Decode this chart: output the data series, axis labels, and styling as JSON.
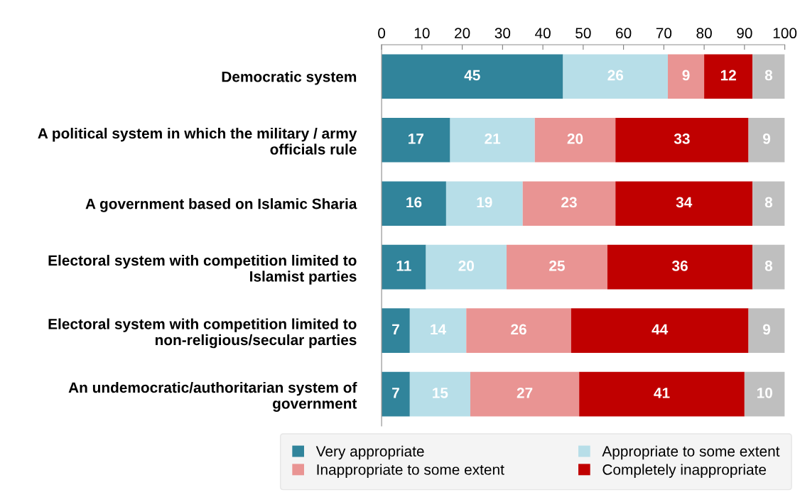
{
  "chart_data": {
    "type": "bar",
    "orientation": "horizontal",
    "stacked": true,
    "data_labels": true,
    "grid": false,
    "legend": "bottom",
    "categories": [
      "Democratic system",
      "A political system in which the military / army\nofficials rule",
      "A government based on Islamic Sharia",
      "Electoral system with competition limited to\nIslamist parties",
      "Electoral system with competition limited to\nnon-religious/secular parties",
      "An undemocratic/authoritarian system of\ngovernment"
    ],
    "xlim": [
      0,
      100
    ],
    "xticks": [
      0,
      10,
      20,
      30,
      40,
      50,
      60,
      70,
      80,
      90,
      100
    ],
    "series": [
      {
        "name": "Very appropriate",
        "color": "#31849b",
        "values": [
          45,
          17,
          16,
          11,
          7,
          7
        ]
      },
      {
        "name": "Appropriate to some extent",
        "color": "#b7dee8",
        "values": [
          26,
          21,
          19,
          20,
          14,
          15
        ]
      },
      {
        "name": "Inappropriate to some extent",
        "color": "#e99493",
        "values": [
          9,
          20,
          23,
          25,
          26,
          27
        ]
      },
      {
        "name": "Completely inappropriate",
        "color": "#c00000",
        "values": [
          12,
          33,
          34,
          36,
          44,
          41
        ]
      },
      {
        "color": "#bfbfbf",
        "values": [
          8,
          9,
          8,
          8,
          9,
          10
        ]
      }
    ]
  }
}
